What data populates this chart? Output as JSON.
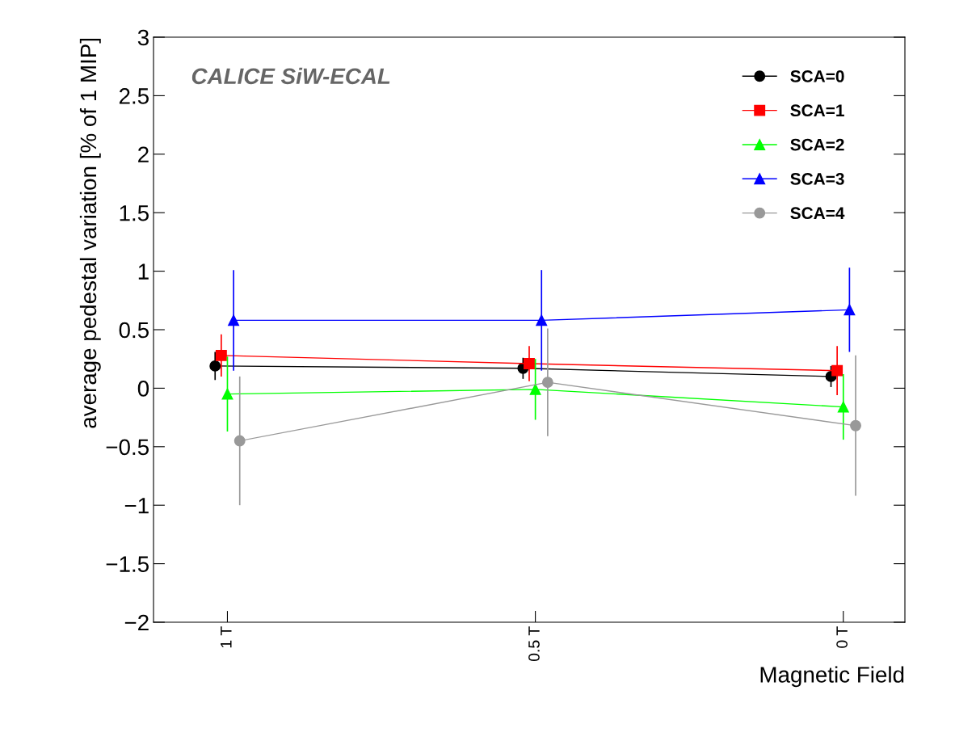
{
  "chart_data": {
    "type": "line",
    "xlabel": "Magnetic Field",
    "ylabel": "average pedestal variation [% of 1 MIP]",
    "xlim": [
      1.12,
      -0.1
    ],
    "xticks": [
      {
        "value": 1,
        "label": "1 T"
      },
      {
        "value": 0.5,
        "label": "0.5 T"
      },
      {
        "value": 0,
        "label": "0 T"
      }
    ],
    "series": [
      {
        "name": "SCA=0",
        "color": "#000000",
        "marker": "circle",
        "x": [
          1.02,
          0.52,
          0.02
        ],
        "values": [
          0.19,
          0.17,
          0.1
        ],
        "errors": [
          0.12,
          0.09,
          0.09
        ]
      },
      {
        "name": "SCA=1",
        "color": "#ff0000",
        "marker": "square",
        "x": [
          1.01,
          0.51,
          0.01
        ],
        "values": [
          0.28,
          0.21,
          0.15
        ],
        "errors": [
          0.18,
          0.15,
          0.21
        ]
      },
      {
        "name": "SCA=2",
        "color": "#00ff00",
        "marker": "triangle",
        "x": [
          1,
          0.5,
          0
        ],
        "values": [
          -0.05,
          -0.01,
          -0.16
        ],
        "errors": [
          0.32,
          0.26,
          0.28
        ]
      },
      {
        "name": "SCA=3",
        "color": "#0000ff",
        "marker": "triangle",
        "x": [
          0.99,
          0.49,
          -0.01
        ],
        "values": [
          0.58,
          0.58,
          0.67
        ],
        "errors": [
          0.43,
          0.43,
          0.36
        ]
      },
      {
        "name": "SCA=4",
        "color": "#999999",
        "marker": "circle",
        "x": [
          0.98,
          0.48,
          -0.02
        ],
        "values": [
          -0.45,
          0.05,
          -0.32
        ],
        "errors": [
          0.55,
          0.46,
          0.6
        ]
      }
    ],
    "ylim": [
      -2,
      3
    ],
    "yticks": [
      {
        "value": -2,
        "label": "−2"
      },
      {
        "value": -1.5,
        "label": "−1.5"
      },
      {
        "value": -1,
        "label": "−1"
      },
      {
        "value": -0.5,
        "label": "−0.5"
      },
      0,
      0.5,
      1,
      1.5,
      2,
      2.5,
      3
    ],
    "legend": "top right",
    "grid": false,
    "annotations": [
      "CALICE SiW-ECAL"
    ]
  }
}
